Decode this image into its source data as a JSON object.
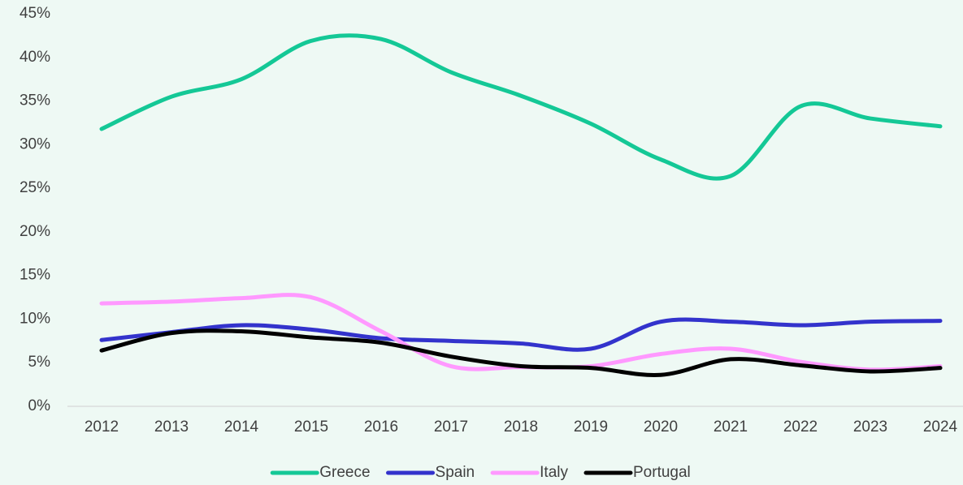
{
  "chart_data": {
    "type": "line",
    "categories": [
      "2012",
      "2013",
      "2014",
      "2015",
      "2016",
      "2017",
      "2018",
      "2019",
      "2020",
      "2021",
      "2022",
      "2023",
      "2024"
    ],
    "series": [
      {
        "name": "Greece",
        "color": "#14c896",
        "values": [
          31.8,
          35.5,
          37.5,
          41.9,
          42.1,
          38.3,
          35.6,
          32.4,
          28.3,
          26.4,
          34.4,
          33.0,
          32.1
        ]
      },
      {
        "name": "Spain",
        "color": "#3333cc",
        "values": [
          7.6,
          8.5,
          9.3,
          8.8,
          7.8,
          7.5,
          7.2,
          6.6,
          9.7,
          9.7,
          9.3,
          9.7,
          9.8
        ]
      },
      {
        "name": "Italy",
        "color": "#ff99ff",
        "values": [
          11.8,
          12.0,
          12.4,
          12.5,
          8.6,
          4.6,
          4.5,
          4.6,
          6.0,
          6.6,
          5.1,
          4.2,
          4.6
        ]
      },
      {
        "name": "Portugal",
        "color": "#000000",
        "values": [
          6.4,
          8.4,
          8.6,
          7.9,
          7.3,
          5.7,
          4.6,
          4.4,
          3.6,
          5.4,
          4.7,
          4.0,
          4.4
        ]
      }
    ],
    "ylim": [
      0,
      45
    ],
    "yticks": [
      {
        "value": 0,
        "label": "0%"
      },
      {
        "value": 5,
        "label": "5%"
      },
      {
        "value": 10,
        "label": "10%"
      },
      {
        "value": 15,
        "label": "15%"
      },
      {
        "value": 20,
        "label": "20%"
      },
      {
        "value": 25,
        "label": "25%"
      },
      {
        "value": 30,
        "label": "30%"
      },
      {
        "value": 35,
        "label": "35%"
      },
      {
        "value": 40,
        "label": "40%"
      },
      {
        "value": 45,
        "label": "45%"
      }
    ],
    "smooth": true,
    "legend": "bottom"
  }
}
